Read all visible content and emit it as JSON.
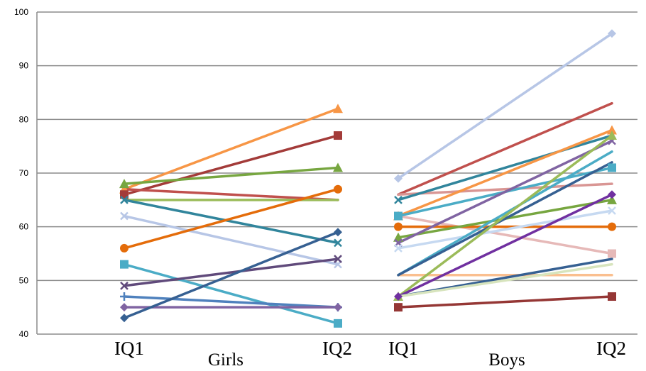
{
  "chart_data": {
    "type": "line",
    "title": "",
    "ylabel": "",
    "ylim": [
      40,
      100
    ],
    "yticks": [
      40,
      50,
      60,
      70,
      80,
      90,
      100
    ],
    "grid": true,
    "legend": "none",
    "groups": [
      {
        "name": "Girls",
        "categories": [
          "IQ1",
          "IQ2"
        ],
        "series": [
          {
            "values": [
              67,
              82
            ],
            "color": "#f79646",
            "marker": "triangle"
          },
          {
            "values": [
              66,
              77
            ],
            "color": "#a33b39",
            "marker": "square"
          },
          {
            "values": [
              68,
              71
            ],
            "color": "#77a640",
            "marker": "triangle"
          },
          {
            "values": [
              67,
              65
            ],
            "color": "#c0504d",
            "marker": "none"
          },
          {
            "values": [
              65,
              65
            ],
            "color": "#9bbb59",
            "marker": "none"
          },
          {
            "values": [
              65,
              57
            ],
            "color": "#31859c",
            "marker": "x"
          },
          {
            "values": [
              62,
              53
            ],
            "color": "#b7c6e6",
            "marker": "x"
          },
          {
            "values": [
              56,
              67
            ],
            "color": "#e46c0a",
            "marker": "circle"
          },
          {
            "values": [
              53,
              42
            ],
            "color": "#4bacc6",
            "marker": "square"
          },
          {
            "values": [
              49,
              54
            ],
            "color": "#604a7b",
            "marker": "x"
          },
          {
            "values": [
              47,
              45
            ],
            "color": "#4f81bd",
            "marker": "plus"
          },
          {
            "values": [
              45,
              45
            ],
            "color": "#8064a2",
            "marker": "diamond"
          },
          {
            "values": [
              43,
              59
            ],
            "color": "#366092",
            "marker": "diamond"
          }
        ]
      },
      {
        "name": "Boys",
        "categories": [
          "IQ1",
          "IQ2"
        ],
        "series": [
          {
            "values": [
              69,
              96
            ],
            "color": "#b7c6e6",
            "marker": "diamond"
          },
          {
            "values": [
              66,
              83
            ],
            "color": "#c0504d",
            "marker": "none"
          },
          {
            "values": [
              66,
              68
            ],
            "color": "#d99694",
            "marker": "none"
          },
          {
            "values": [
              65,
              77
            ],
            "color": "#31859c",
            "marker": "x"
          },
          {
            "values": [
              62,
              78
            ],
            "color": "#f79646",
            "marker": "triangle"
          },
          {
            "values": [
              62,
              55
            ],
            "color": "#e6b9b8",
            "marker": "square"
          },
          {
            "values": [
              62,
              71
            ],
            "color": "#4bacc6",
            "marker": "square"
          },
          {
            "values": [
              60,
              60
            ],
            "color": "#e46c0a",
            "marker": "circle"
          },
          {
            "values": [
              58,
              65
            ],
            "color": "#77a640",
            "marker": "triangle"
          },
          {
            "values": [
              57,
              76
            ],
            "color": "#8064a2",
            "marker": "x"
          },
          {
            "values": [
              56,
              63
            ],
            "color": "#c6d9f1",
            "marker": "x"
          },
          {
            "values": [
              51,
              74
            ],
            "color": "#4bacc6",
            "marker": "none"
          },
          {
            "values": [
              51,
              51
            ],
            "color": "#fabf8f",
            "marker": "none"
          },
          {
            "values": [
              51,
              72
            ],
            "color": "#366092",
            "marker": "none"
          },
          {
            "values": [
              47,
              77
            ],
            "color": "#9bbb59",
            "marker": "triangle"
          },
          {
            "values": [
              47,
              66
            ],
            "color": "#7030a0",
            "marker": "diamond"
          },
          {
            "values": [
              47,
              54
            ],
            "color": "#366092",
            "marker": "none"
          },
          {
            "values": [
              47,
              53
            ],
            "color": "#d7e4bd",
            "marker": "none"
          },
          {
            "values": [
              45,
              47
            ],
            "color": "#953735",
            "marker": "square"
          }
        ]
      }
    ]
  }
}
